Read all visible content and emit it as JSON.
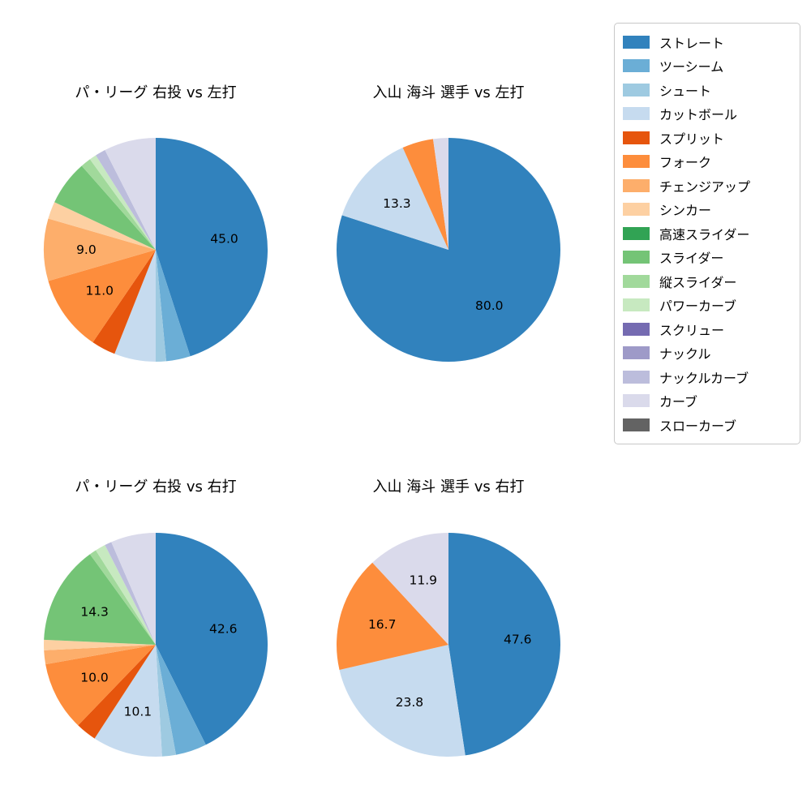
{
  "legend": {
    "entries": [
      {
        "label": "ストレート",
        "color": "#3182bd"
      },
      {
        "label": "ツーシーム",
        "color": "#6baed6"
      },
      {
        "label": "シュート",
        "color": "#9ecae1"
      },
      {
        "label": "カットボール",
        "color": "#c6dbef"
      },
      {
        "label": "スプリット",
        "color": "#e6550d"
      },
      {
        "label": "フォーク",
        "color": "#fd8d3c"
      },
      {
        "label": "チェンジアップ",
        "color": "#fdae6b"
      },
      {
        "label": "シンカー",
        "color": "#fdd0a2"
      },
      {
        "label": "高速スライダー",
        "color": "#31a354"
      },
      {
        "label": "スライダー",
        "color": "#74c476"
      },
      {
        "label": "縦スライダー",
        "color": "#a1d99b"
      },
      {
        "label": "パワーカーブ",
        "color": "#c7e9c0"
      },
      {
        "label": "スクリュー",
        "color": "#756bb1"
      },
      {
        "label": "ナックル",
        "color": "#9e9ac8"
      },
      {
        "label": "ナックルカーブ",
        "color": "#bcbddc"
      },
      {
        "label": "カーブ",
        "color": "#dadaeb"
      },
      {
        "label": "スローカーブ",
        "color": "#636363"
      }
    ]
  },
  "chart_data": [
    {
      "type": "pie",
      "title": "パ・リーグ 右投 vs 左打",
      "start_angle": 90,
      "clockwise": true,
      "label_min_pct": 9.0,
      "slices": [
        {
          "label": "ストレート",
          "value": 45.0
        },
        {
          "label": "ツーシーム",
          "value": 3.5
        },
        {
          "label": "シュート",
          "value": 1.5
        },
        {
          "label": "カットボール",
          "value": 6.0
        },
        {
          "label": "スプリット",
          "value": 3.5
        },
        {
          "label": "フォーク",
          "value": 11.0
        },
        {
          "label": "チェンジアップ",
          "value": 9.0
        },
        {
          "label": "シンカー",
          "value": 2.5
        },
        {
          "label": "スライダー",
          "value": 6.5
        },
        {
          "label": "縦スライダー",
          "value": 1.5
        },
        {
          "label": "パワーカーブ",
          "value": 1.0
        },
        {
          "label": "ナックルカーブ",
          "value": 1.5
        },
        {
          "label": "カーブ",
          "value": 7.5
        }
      ]
    },
    {
      "type": "pie",
      "title": "入山 海斗 選手 vs 左打",
      "start_angle": 90,
      "clockwise": true,
      "label_min_pct": 9.0,
      "slices": [
        {
          "label": "ストレート",
          "value": 80.0
        },
        {
          "label": "カットボール",
          "value": 13.3
        },
        {
          "label": "フォーク",
          "value": 4.5
        },
        {
          "label": "カーブ",
          "value": 2.2
        }
      ]
    },
    {
      "type": "pie",
      "title": "パ・リーグ 右投 vs 右打",
      "start_angle": 90,
      "clockwise": true,
      "label_min_pct": 9.0,
      "slices": [
        {
          "label": "ストレート",
          "value": 42.6
        },
        {
          "label": "ツーシーム",
          "value": 4.5
        },
        {
          "label": "シュート",
          "value": 2.0
        },
        {
          "label": "カットボール",
          "value": 10.1
        },
        {
          "label": "スプリット",
          "value": 3.0
        },
        {
          "label": "フォーク",
          "value": 10.0
        },
        {
          "label": "チェンジアップ",
          "value": 2.0
        },
        {
          "label": "シンカー",
          "value": 1.5
        },
        {
          "label": "スライダー",
          "value": 14.3
        },
        {
          "label": "縦スライダー",
          "value": 1.0
        },
        {
          "label": "パワーカーブ",
          "value": 1.5
        },
        {
          "label": "ナックルカーブ",
          "value": 1.0
        },
        {
          "label": "カーブ",
          "value": 6.5
        }
      ]
    },
    {
      "type": "pie",
      "title": "入山 海斗 選手 vs 右打",
      "start_angle": 90,
      "clockwise": true,
      "label_min_pct": 9.0,
      "slices": [
        {
          "label": "ストレート",
          "value": 47.6
        },
        {
          "label": "カットボール",
          "value": 23.8
        },
        {
          "label": "フォーク",
          "value": 16.7
        },
        {
          "label": "カーブ",
          "value": 11.9
        }
      ]
    }
  ]
}
